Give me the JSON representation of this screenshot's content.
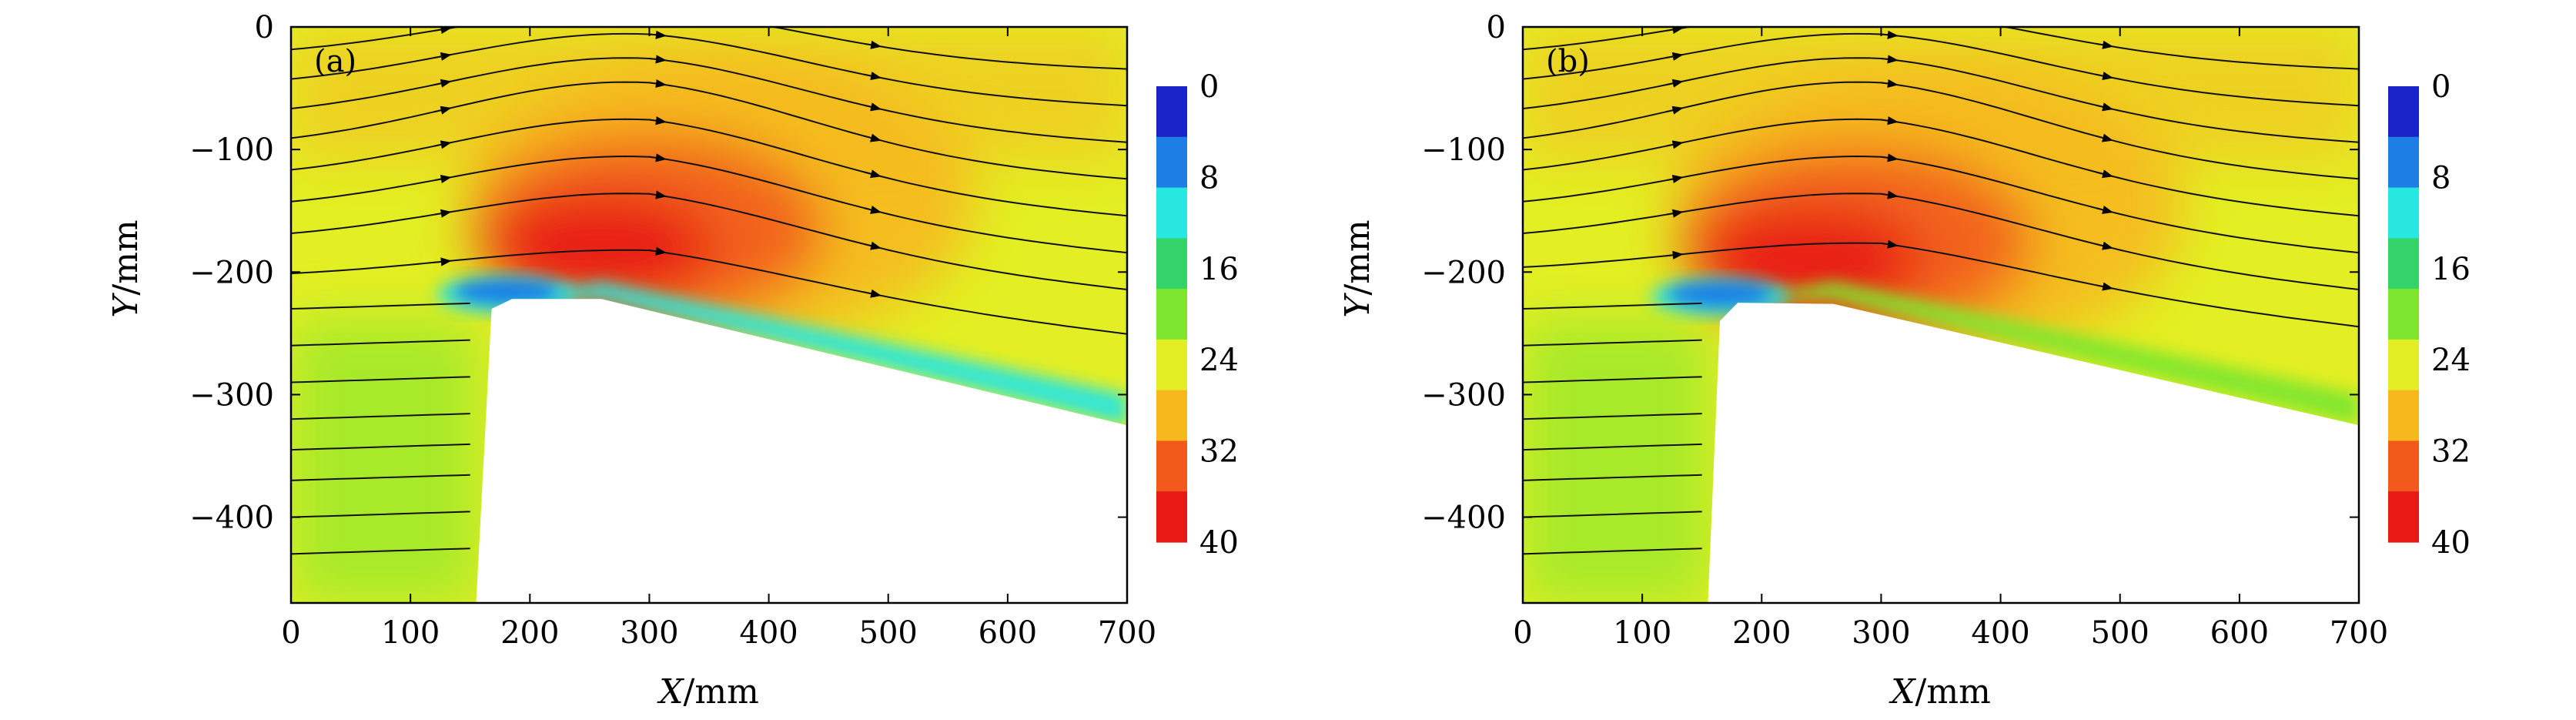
{
  "chart_data": [
    {
      "type": "heatmap",
      "panel_label": "(a)",
      "xlabel": {
        "var": "X",
        "unit": "/mm"
      },
      "ylabel": {
        "var": "Y",
        "unit": "/mm"
      },
      "xlim": [
        0,
        700
      ],
      "ylim": [
        -470,
        0
      ],
      "x_ticks": [
        {
          "value": 0,
          "label": "0"
        },
        {
          "value": 100,
          "label": "100"
        },
        {
          "value": 200,
          "label": "200"
        },
        {
          "value": 300,
          "label": "300"
        },
        {
          "value": 400,
          "label": "400"
        },
        {
          "value": 500,
          "label": "500"
        },
        {
          "value": 600,
          "label": "600"
        },
        {
          "value": 700,
          "label": "700"
        }
      ],
      "y_ticks": [
        {
          "value": 0,
          "label": "0"
        },
        {
          "value": -100,
          "label": "−100"
        },
        {
          "value": -200,
          "label": "−200"
        },
        {
          "value": -300,
          "label": "−300"
        },
        {
          "value": -400,
          "label": "−400"
        }
      ],
      "colorbar": {
        "min": 0,
        "max": 40,
        "ticks": [
          {
            "value": 0,
            "label": "0"
          },
          {
            "value": 8,
            "label": "8"
          },
          {
            "value": 16,
            "label": "16"
          },
          {
            "value": 24,
            "label": "24"
          },
          {
            "value": 32,
            "label": "32"
          },
          {
            "value": 40,
            "label": "40"
          }
        ],
        "colors": [
          "#1a23c8",
          "#1d7fe6",
          "#28e6e0",
          "#35d46a",
          "#7ee62e",
          "#e3ef24",
          "#f6b81c",
          "#f25a1b",
          "#e81a14"
        ]
      },
      "body_outline": [
        [
          155,
          -470
        ],
        [
          168,
          -230
        ],
        [
          185,
          -222
        ],
        [
          260,
          -222
        ],
        [
          700,
          -325
        ],
        [
          700,
          -470
        ]
      ],
      "ambient_value": 24,
      "hot_region": {
        "center": [
          290,
          -190
        ],
        "peak_value": 40
      },
      "recirculation_region": {
        "center": [
          180,
          -218
        ],
        "value": 3
      },
      "streamline_start_y": [
        -25,
        -50,
        -75,
        -100,
        -125,
        -150,
        -175,
        -205,
        -230,
        -260,
        -290,
        -320,
        -345,
        -370,
        -400,
        -430
      ],
      "wake_band": {
        "value": 10
      }
    },
    {
      "type": "heatmap",
      "panel_label": "(b)",
      "xlabel": {
        "var": "X",
        "unit": "/mm"
      },
      "ylabel": {
        "var": "Y",
        "unit": "/mm"
      },
      "xlim": [
        0,
        700
      ],
      "ylim": [
        -470,
        0
      ],
      "x_ticks": [
        {
          "value": 0,
          "label": "0"
        },
        {
          "value": 100,
          "label": "100"
        },
        {
          "value": 200,
          "label": "200"
        },
        {
          "value": 300,
          "label": "300"
        },
        {
          "value": 400,
          "label": "400"
        },
        {
          "value": 500,
          "label": "500"
        },
        {
          "value": 600,
          "label": "600"
        },
        {
          "value": 700,
          "label": "700"
        }
      ],
      "y_ticks": [
        {
          "value": 0,
          "label": "0"
        },
        {
          "value": -100,
          "label": "−100"
        },
        {
          "value": -200,
          "label": "−200"
        },
        {
          "value": -300,
          "label": "−300"
        },
        {
          "value": -400,
          "label": "−400"
        }
      ],
      "colorbar": {
        "min": 0,
        "max": 40,
        "ticks": [
          {
            "value": 0,
            "label": "0"
          },
          {
            "value": 8,
            "label": "8"
          },
          {
            "value": 16,
            "label": "16"
          },
          {
            "value": 24,
            "label": "24"
          },
          {
            "value": 32,
            "label": "32"
          },
          {
            "value": 40,
            "label": "40"
          }
        ],
        "colors": [
          "#1a23c8",
          "#1d7fe6",
          "#28e6e0",
          "#35d46a",
          "#7ee62e",
          "#e3ef24",
          "#f6b81c",
          "#f25a1b",
          "#e81a14"
        ]
      },
      "body_outline": [
        [
          155,
          -470
        ],
        [
          165,
          -240
        ],
        [
          180,
          -225
        ],
        [
          260,
          -226
        ],
        [
          700,
          -325
        ],
        [
          700,
          -470
        ]
      ],
      "ambient_value": 24,
      "hot_region": {
        "center": [
          270,
          -200
        ],
        "peak_value": 40
      },
      "recirculation_region": {
        "center": [
          165,
          -220
        ],
        "value": 3
      },
      "streamline_start_y": [
        -25,
        -50,
        -75,
        -100,
        -125,
        -150,
        -175,
        -200,
        -230,
        -260,
        -290,
        -320,
        -345,
        -370,
        -400,
        -430
      ],
      "wake_band": {
        "value": 20
      }
    }
  ]
}
